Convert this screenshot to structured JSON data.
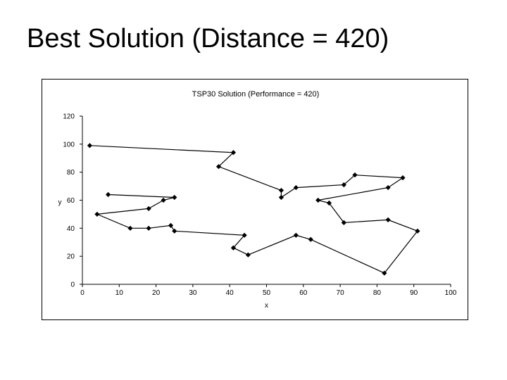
{
  "slide": {
    "title": "Best Solution (Distance = 420)"
  },
  "chart_data": {
    "type": "line",
    "title": "TSP30 Solution (Performance = 420)",
    "xlabel": "x",
    "ylabel": "y",
    "xlim": [
      0,
      100
    ],
    "ylim": [
      0,
      120
    ],
    "xticks": [
      0,
      10,
      20,
      30,
      40,
      50,
      60,
      70,
      80,
      90,
      100
    ],
    "yticks": [
      0,
      20,
      40,
      60,
      80,
      100,
      120
    ],
    "grid": false,
    "legend": false,
    "marker": "diamond",
    "series": [
      {
        "x": [
          2,
          41,
          37,
          54,
          54,
          58,
          71,
          74,
          87,
          83,
          64,
          67,
          71,
          83,
          91,
          82,
          62,
          58,
          45,
          41,
          44,
          25,
          24,
          18,
          13,
          4,
          18,
          22,
          25,
          7
        ],
        "y": [
          99,
          94,
          84,
          67,
          62,
          69,
          71,
          78,
          76,
          69,
          60,
          58,
          44,
          46,
          38,
          8,
          32,
          35,
          21,
          26,
          35,
          38,
          42,
          40,
          40,
          50,
          54,
          60,
          62,
          64
        ]
      }
    ]
  }
}
